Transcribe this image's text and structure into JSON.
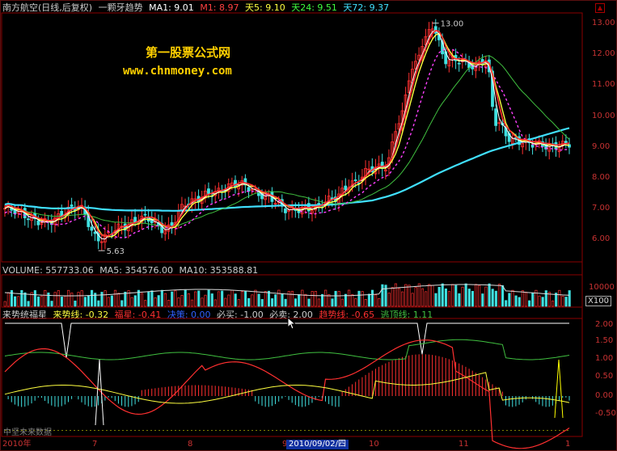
{
  "main": {
    "stock_name": "南方航空(日线,后复权)",
    "indicator_name": "一颗牙趋势",
    "ma1": "MA1: 9.01",
    "m1": "M1: 8.97",
    "tian5": "天5: 9.10",
    "tian24": "天24: 9.51",
    "tian72": "天72: 9.37",
    "high_label": "13.00",
    "low_label": "5.63",
    "y_ticks": [
      "13.00",
      "12.00",
      "11.00",
      "10.00",
      "9.00",
      "8.00",
      "7.00",
      "6.00"
    ],
    "watermark_cn": "第一股票公式网",
    "watermark_url": "www.chnmoney.com"
  },
  "volume": {
    "volume": "VOLUME: 557733.06",
    "ma5": "MA5: 354576.00",
    "ma10": "MA10: 353588.81",
    "y_tick": "10000",
    "unit": "X100"
  },
  "indicator": {
    "name": "来势统福星",
    "laishi": "来势线: -0.32",
    "fuxing": "福星: -0.41",
    "juece": "决策: 0.00",
    "bimai": "必买: -1.00",
    "bimai2": "必卖: 2.00",
    "qushi": "趋势线: -0.65",
    "taoding": "逃顶线: 1.11",
    "y_ticks": [
      "2.00",
      "1.50",
      "1.00",
      "0.50",
      "0.00",
      "-0.50"
    ]
  },
  "xaxis": {
    "labels": [
      "2010年",
      "7",
      "8",
      "9",
      "10",
      "11",
      "1"
    ],
    "cursor_date": "2010/09/02/四",
    "footer_text": "中坚未来数据"
  },
  "colors": {
    "border": "#8b0000",
    "price_up": "#ff3030",
    "price_down": "#40e0e0",
    "ma_white": "#ffffff",
    "ma_yellow": "#ffff40",
    "ma_magenta": "#ff40ff",
    "ma_green": "#40c040",
    "ma_cyan": "#40e0ff"
  }
}
